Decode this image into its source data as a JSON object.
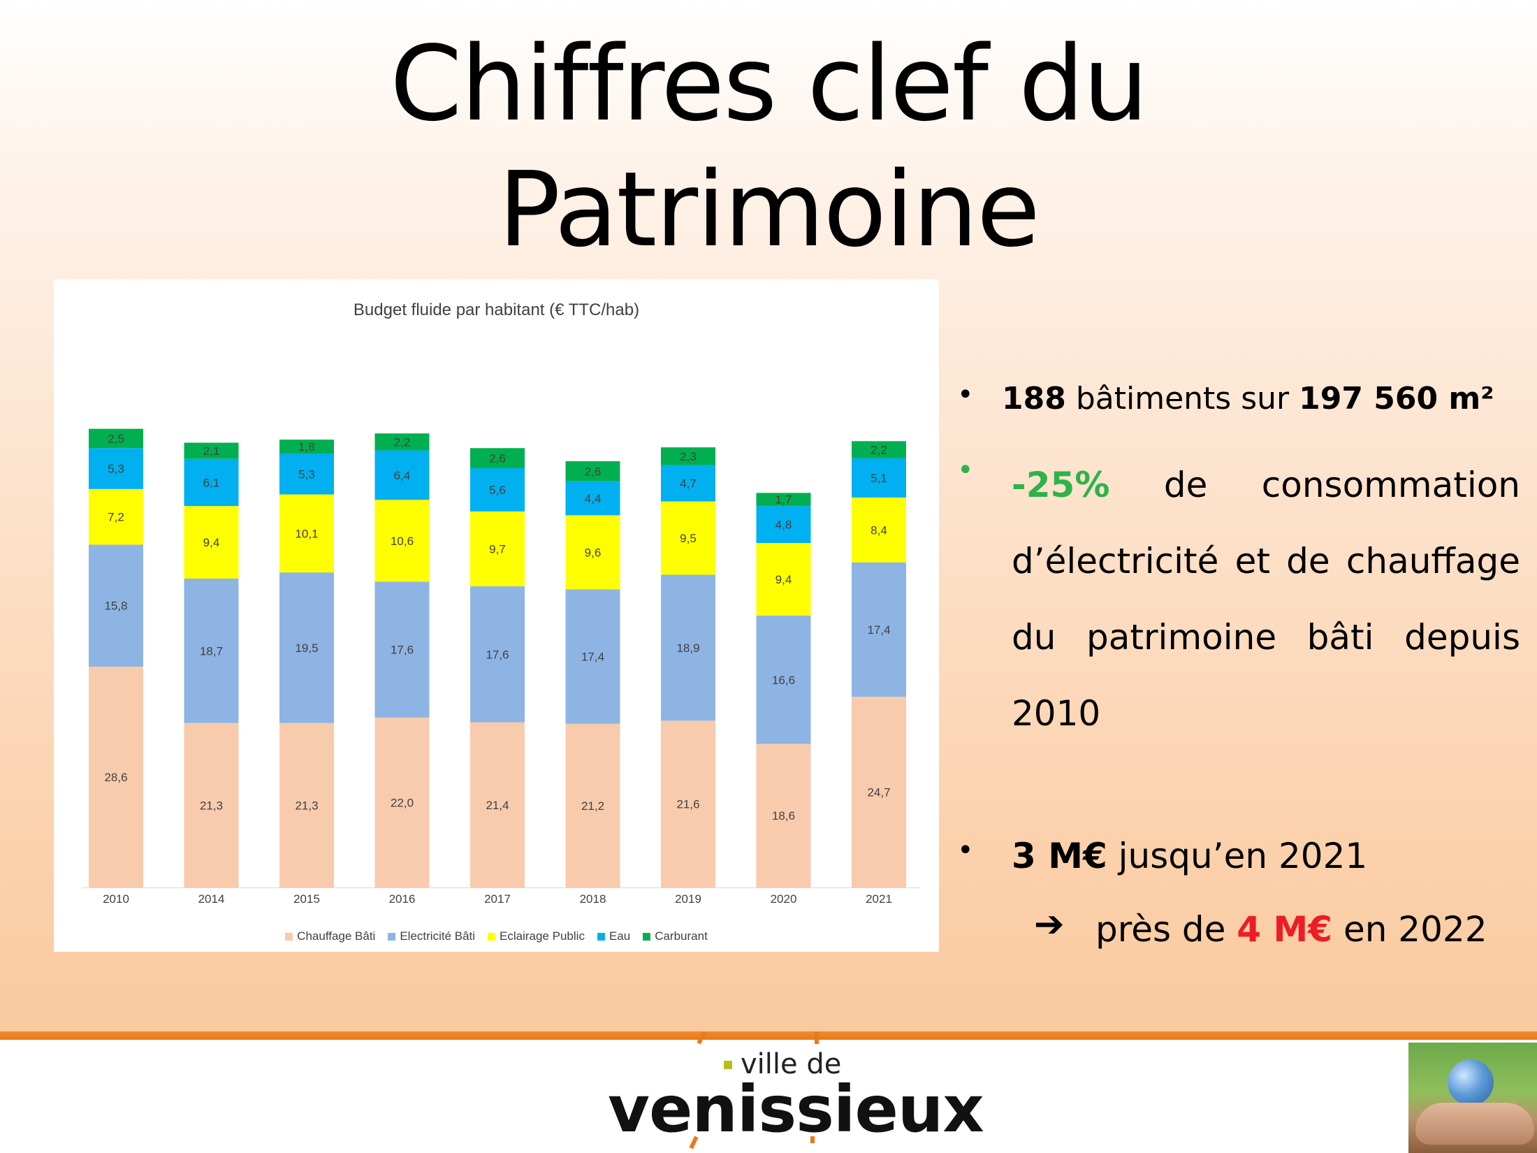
{
  "slide": {
    "title_line1": "Chiffres clef du",
    "title_line2": "Patrimoine"
  },
  "bullets": {
    "b1_num1": "188",
    "b1_mid": " bâtiments sur ",
    "b1_num2": "197 560 m²",
    "b2_pct": "-25%",
    "b2_text": " de consommation d’électricité et de chauffage du patrimoine bâti depuis 2010",
    "b3_amount": "3 M€",
    "b3_text": " jusqu’en 2021",
    "b4_pre": "près de ",
    "b4_amount": "4 M€",
    "b4_post": " en 2022",
    "bullet_icon": "bullet-dot",
    "arrow_icon": "right-arrow-icon"
  },
  "footer": {
    "logo_small": "ville de",
    "logo_main": "venissieux"
  },
  "colors": {
    "chauffage": "#f8cbad",
    "electricite": "#8eb4e3",
    "eclairage": "#ffff00",
    "eau": "#00b0f0",
    "carburant": "#00b050",
    "green_accent": "#2db34a",
    "red_accent": "#ee1c25",
    "footer_orange": "#e9791c"
  },
  "chart_data": {
    "type": "bar",
    "stacked": true,
    "title": "Budget fluide par habitant (€ TTC/hab)",
    "categories": [
      "2010",
      "2014",
      "2015",
      "2016",
      "2017",
      "2018",
      "2019",
      "2020",
      "2021"
    ],
    "series": [
      {
        "name": "Chauffage Bâti",
        "color": "#f8cbad",
        "values": [
          28.6,
          21.3,
          21.3,
          22.0,
          21.4,
          21.2,
          21.6,
          18.6,
          24.7
        ],
        "labels": [
          "28,6",
          "21,3",
          "21,3",
          "22,0",
          "21,4",
          "21,2",
          "21,6",
          "18,6",
          "24,7"
        ]
      },
      {
        "name": "Electricité Bâti",
        "color": "#8eb4e3",
        "values": [
          15.8,
          18.7,
          19.5,
          17.6,
          17.6,
          17.4,
          18.9,
          16.6,
          17.4
        ],
        "labels": [
          "15,8",
          "18,7",
          "19,5",
          "17,6",
          "17,6",
          "17,4",
          "18,9",
          "16,6",
          "17,4"
        ]
      },
      {
        "name": "Eclairage Public",
        "color": "#ffff00",
        "values": [
          7.2,
          9.4,
          10.1,
          10.6,
          9.7,
          9.6,
          9.5,
          9.4,
          8.4
        ],
        "labels": [
          "7,2",
          "9,4",
          "10,1",
          "10,6",
          "9,7",
          "9,6",
          "9,5",
          "9,4",
          "8,4"
        ]
      },
      {
        "name": "Eau",
        "color": "#00b0f0",
        "values": [
          5.3,
          6.1,
          5.3,
          6.4,
          5.6,
          4.4,
          4.7,
          4.8,
          5.1
        ],
        "labels": [
          "5,3",
          "6,1",
          "5,3",
          "6,4",
          "5,6",
          "4,4",
          "4,7",
          "4,8",
          "5,1"
        ]
      },
      {
        "name": "Carburant",
        "color": "#00b050",
        "values": [
          2.5,
          2.1,
          1.8,
          2.2,
          2.6,
          2.6,
          2.3,
          1.7,
          2.2
        ],
        "labels": [
          "2,5",
          "2,1",
          "1,8",
          "2,2",
          "2,6",
          "2,6",
          "2,3",
          "1,7",
          "2,2"
        ]
      }
    ],
    "legend_position": "bottom",
    "grid": false,
    "y_axis_visible": false
  }
}
